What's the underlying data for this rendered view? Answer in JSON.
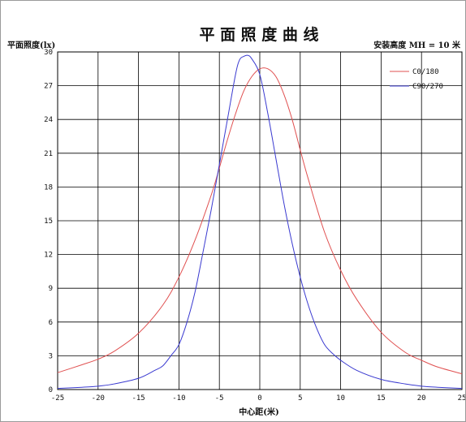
{
  "chart_data": {
    "type": "line",
    "title": "平 面 照 度 曲 线",
    "ylabel": "平面照度(lx)",
    "xlabel": "中心距(米)",
    "annotation": "安装高度 MH = 10 米",
    "xlim": [
      -25,
      25
    ],
    "ylim": [
      0,
      30
    ],
    "xticks": [
      -25,
      -20,
      -15,
      -10,
      -5,
      0,
      5,
      10,
      15,
      20,
      25
    ],
    "yticks": [
      0,
      3,
      6,
      9,
      12,
      15,
      18,
      21,
      24,
      27,
      30
    ],
    "grid": true,
    "legend_position": "top-right",
    "series": [
      {
        "name": "C0/180",
        "color": "#e05050",
        "x": [
          -25,
          -22,
          -20,
          -18,
          -15,
          -12,
          -10,
          -8,
          -6,
          -5,
          -4,
          -3,
          -2,
          -1,
          0,
          1,
          2,
          3,
          4,
          5,
          6,
          8,
          10,
          12,
          15,
          18,
          20,
          22,
          25
        ],
        "y": [
          1.5,
          2.2,
          2.7,
          3.4,
          5.0,
          7.5,
          10.0,
          13.3,
          17.3,
          19.7,
          22.2,
          24.5,
          26.5,
          27.8,
          28.5,
          28.5,
          27.8,
          26.2,
          24.0,
          21.3,
          18.7,
          14.0,
          10.6,
          8.0,
          5.1,
          3.3,
          2.6,
          2.0,
          1.4
        ]
      },
      {
        "name": "C90/270",
        "color": "#3a3ad0",
        "x": [
          -25,
          -22,
          -20,
          -18,
          -15,
          -13,
          -12,
          -11,
          -10,
          -9,
          -8,
          -7,
          -6,
          -5,
          -4,
          -3,
          -2.5,
          -2,
          -1.5,
          -1,
          0,
          1,
          2,
          3,
          4,
          5,
          6,
          7,
          8,
          9,
          10,
          12,
          15,
          18,
          20,
          22,
          25
        ],
        "y": [
          0.1,
          0.2,
          0.3,
          0.5,
          1.0,
          1.7,
          2.1,
          3.0,
          4.0,
          6.0,
          8.7,
          12.3,
          16.0,
          20.0,
          24.0,
          28.0,
          29.3,
          29.6,
          29.7,
          29.4,
          28.0,
          24.5,
          20.5,
          16.5,
          13.0,
          10.0,
          7.5,
          5.5,
          4.0,
          3.2,
          2.6,
          1.7,
          0.9,
          0.5,
          0.3,
          0.2,
          0.1
        ]
      }
    ]
  }
}
